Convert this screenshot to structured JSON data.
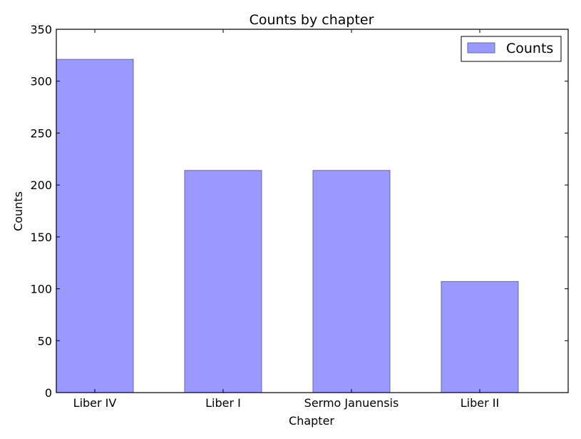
{
  "chart_data": {
    "type": "bar",
    "title": "Counts by chapter",
    "xlabel": "Chapter",
    "ylabel": "Counts",
    "categories": [
      "Liber IV",
      "Liber I",
      "Sermo Januensis",
      "Liber II"
    ],
    "series": [
      {
        "name": "Counts",
        "values": [
          321,
          214,
          214,
          107
        ],
        "color": "#9999ff",
        "edge_color": "#6666aa"
      }
    ],
    "ylim": [
      0,
      350
    ],
    "yticks": [
      0,
      50,
      100,
      150,
      200,
      250,
      300,
      350
    ],
    "grid": false,
    "legend_position": "top-right"
  }
}
